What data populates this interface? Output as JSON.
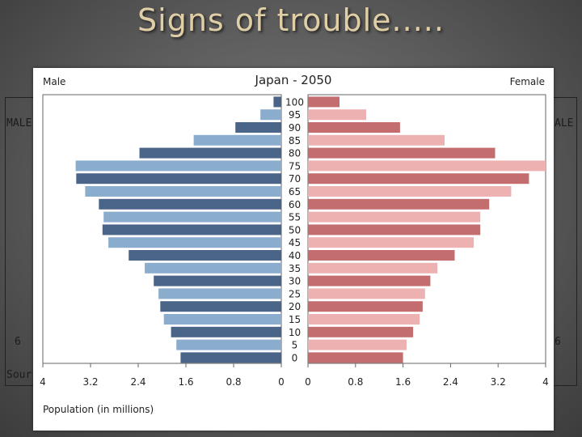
{
  "slide": {
    "title": "Signs of trouble.....",
    "behind_labels": {
      "male_left": "MALE",
      "male_right": "ALE",
      "tick_left": "6",
      "tick_right": "6",
      "source": "Sour"
    }
  },
  "colors": {
    "male_dark": "#4a6587",
    "male_light": "#8aaccd",
    "female_dark": "#c46d6f",
    "female_light": "#eeb1b1",
    "background": "#666666",
    "title": "#e0cfa6"
  },
  "chart_data": {
    "type": "bar",
    "orientation": "horizontal",
    "title": "Japan - 2050",
    "left_label": "Male",
    "right_label": "Female",
    "xlabel": "Population (in millions)",
    "xlim": [
      0,
      4
    ],
    "x_ticks_left": [
      "4",
      "3.2",
      "2.4",
      "1.6",
      "0.8",
      "0"
    ],
    "x_ticks_right": [
      "0",
      "0.8",
      "1.6",
      "2.4",
      "3.2",
      "4"
    ],
    "x_tick_values": [
      0,
      0.8,
      1.6,
      2.4,
      3.2,
      4
    ],
    "categories": [
      "100",
      "95",
      "90",
      "85",
      "80",
      "75",
      "70",
      "65",
      "60",
      "55",
      "50",
      "45",
      "40",
      "35",
      "30",
      "25",
      "20",
      "15",
      "10",
      "5",
      "0"
    ],
    "series": [
      {
        "name": "Male",
        "values": [
          0.13,
          0.35,
          0.77,
          1.47,
          2.38,
          3.45,
          3.44,
          3.29,
          3.06,
          2.98,
          3.0,
          2.9,
          2.56,
          2.29,
          2.14,
          2.06,
          2.03,
          1.97,
          1.85,
          1.76,
          1.69
        ]
      },
      {
        "name": "Female",
        "values": [
          0.53,
          0.98,
          1.55,
          2.3,
          3.15,
          4.0,
          3.72,
          3.42,
          3.05,
          2.9,
          2.9,
          2.79,
          2.47,
          2.18,
          2.06,
          1.97,
          1.93,
          1.88,
          1.77,
          1.66,
          1.6
        ]
      }
    ]
  }
}
